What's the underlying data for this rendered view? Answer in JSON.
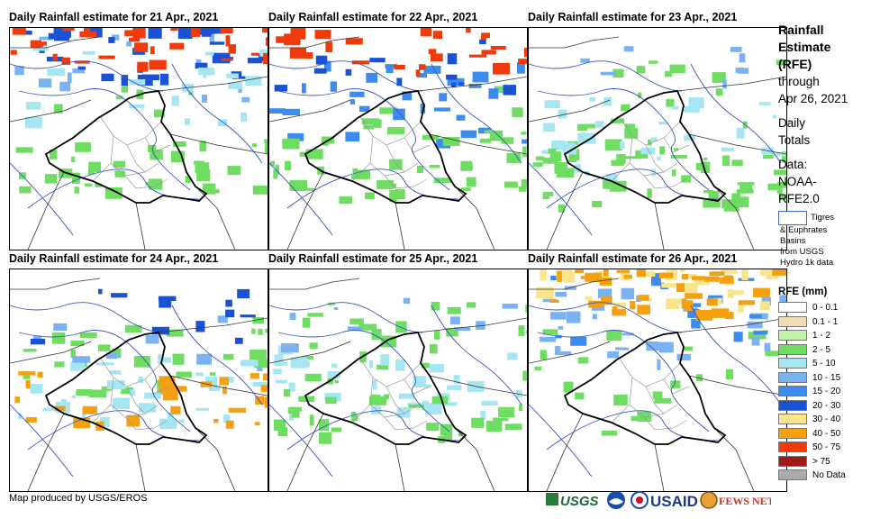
{
  "panels": [
    {
      "title": "Daily Rainfall estimate for 21 Apr., 2021"
    },
    {
      "title": "Daily Rainfall estimate for 22 Apr., 2021"
    },
    {
      "title": "Daily Rainfall estimate for 23 Apr., 2021"
    },
    {
      "title": "Daily Rainfall estimate for 24 Apr., 2021"
    },
    {
      "title": "Daily Rainfall estimate for 25 Apr., 2021"
    },
    {
      "title": "Daily Rainfall estimate for 26 Apr., 2021"
    }
  ],
  "sidebar": {
    "title_line1": "Rainfall",
    "title_line2": "Estimate",
    "title_line3": "(RFE)",
    "through": "through",
    "through_date": "Apr 26, 2021",
    "daily": "Daily",
    "totals": "Totals",
    "data_label": "Data:",
    "data_src1": "NOAA-",
    "data_src2": "RFE2.0"
  },
  "basin_key": {
    "line1": "Tigres",
    "line2": "& Euphrates",
    "line3": "Basins",
    "line4": "from USGS",
    "line5": "Hydro 1k data"
  },
  "legend": {
    "title": "RFE (mm)",
    "items": [
      {
        "label": "0 - 0.1",
        "color": "#ffffff"
      },
      {
        "label": "0.1 - 1",
        "color": "#f2dcb6"
      },
      {
        "label": "1 - 2",
        "color": "#c2f2a8"
      },
      {
        "label": "2 - 5",
        "color": "#6fdc62"
      },
      {
        "label": "5 - 10",
        "color": "#a6e6f2"
      },
      {
        "label": "10 - 15",
        "color": "#7ab2f2"
      },
      {
        "label": "15 - 20",
        "color": "#3c8cf0"
      },
      {
        "label": "20 - 30",
        "color": "#1a52d6"
      },
      {
        "label": "30 - 40",
        "color": "#fae48c"
      },
      {
        "label": "40 - 50",
        "color": "#f5a011"
      },
      {
        "label": "50 - 75",
        "color": "#f03a0a"
      },
      {
        "label": "> 75",
        "color": "#a01818"
      },
      {
        "label": "No Data",
        "color": "#aaaaaa"
      }
    ]
  },
  "credit": "Map produced by USGS/EROS",
  "logos": {
    "usgs": "USGS",
    "usaid": "USAID",
    "fewsnet": "FEWS NET"
  }
}
